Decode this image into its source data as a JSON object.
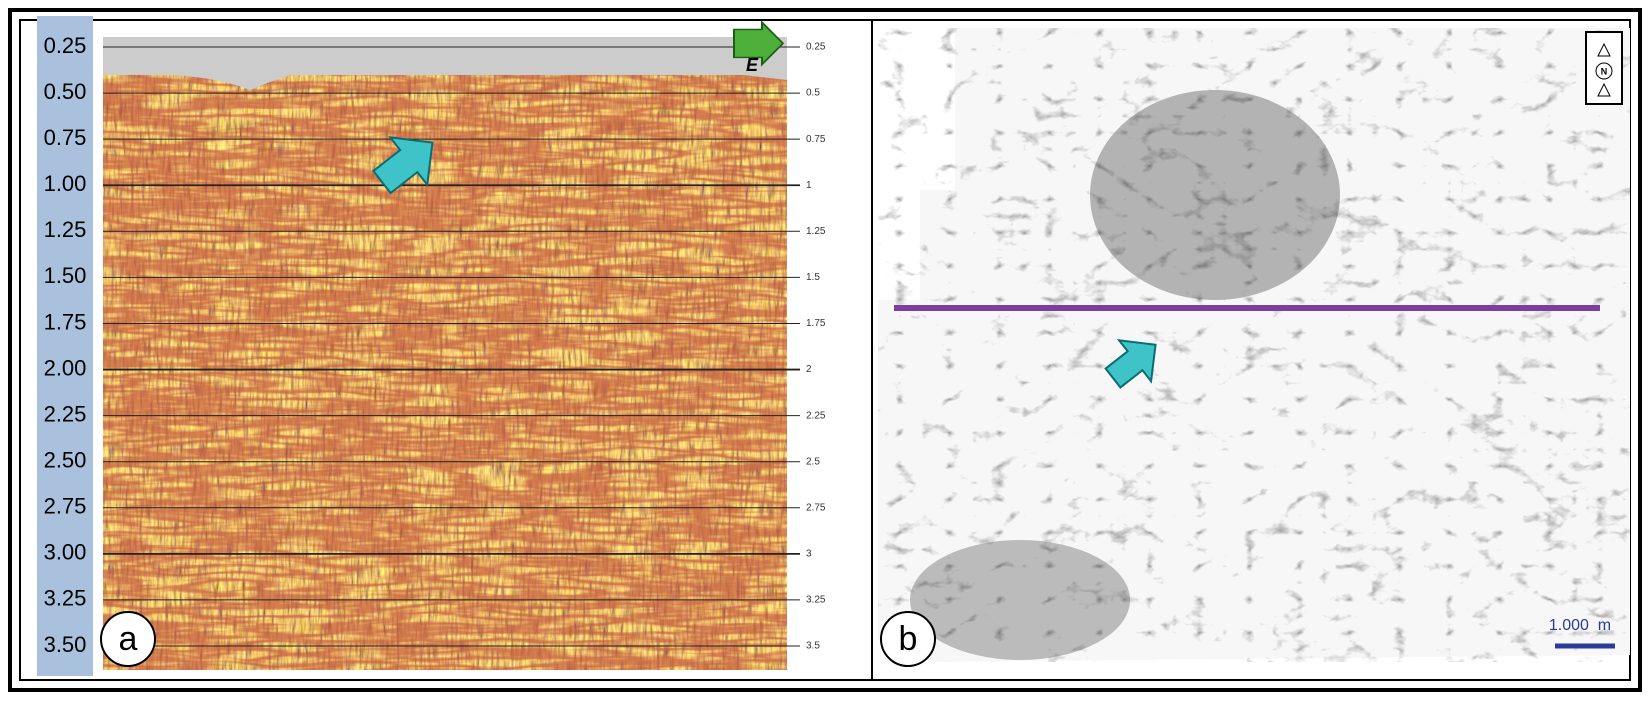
{
  "panel_a": {
    "label": "a",
    "direction": "E",
    "time_axis_left": [
      "0.25",
      "0.50",
      "0.75",
      "1.00",
      "1.25",
      "1.50",
      "1.75",
      "2.00",
      "2.25",
      "2.50",
      "2.75",
      "3.00",
      "3.25",
      "3.50"
    ],
    "time_axis_right": [
      "0.25",
      "0.5",
      "0.75",
      "1",
      "1.25",
      "1.5",
      "1.75",
      "2",
      "2.25",
      "2.5",
      "2.75",
      "3",
      "3.25",
      "3.5"
    ]
  },
  "panel_b": {
    "label": "b",
    "north": "N",
    "scale_bar": "1.000  m"
  }
}
